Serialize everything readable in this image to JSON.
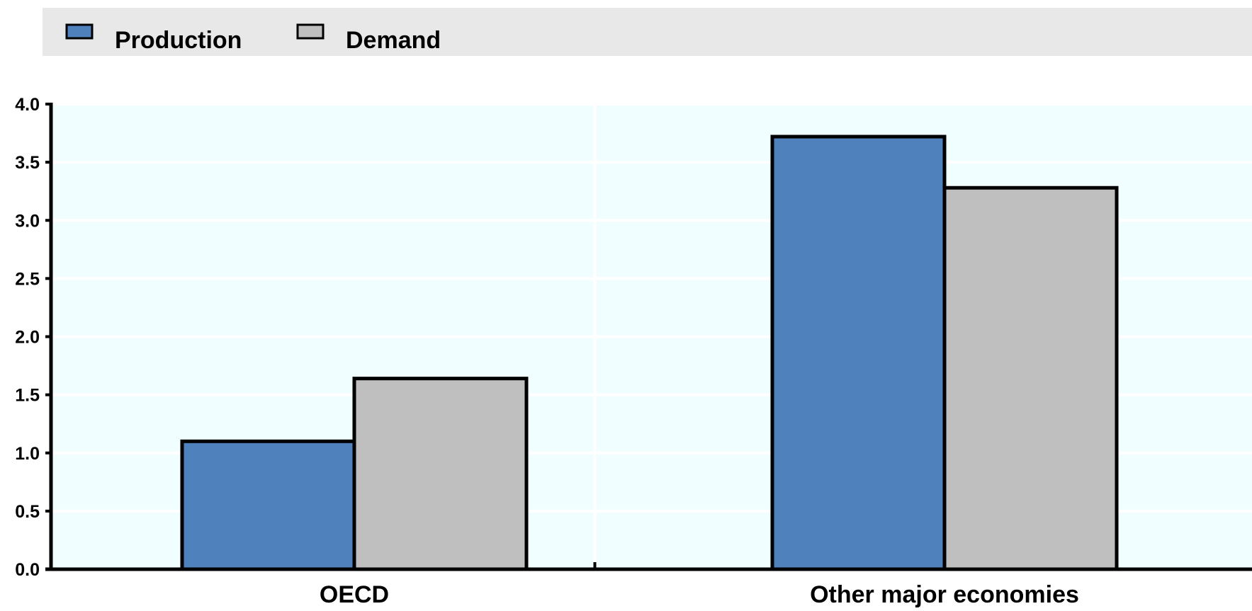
{
  "chart_data": {
    "type": "bar",
    "categories": [
      "OECD",
      "Other major economies"
    ],
    "series": [
      {
        "name": "Production",
        "values": [
          1.1,
          3.72
        ],
        "color": "#4f81bd"
      },
      {
        "name": "Demand",
        "values": [
          1.64,
          3.28
        ],
        "color": "#bfbfbf"
      }
    ],
    "ylim": [
      0,
      4.0
    ],
    "yticks": [
      "0.0",
      "0.5",
      "1.0",
      "1.5",
      "2.0",
      "2.5",
      "3.0",
      "3.5",
      "4.0"
    ],
    "title": "",
    "xlabel": "",
    "ylabel": "",
    "grid": true,
    "legend_position": "top-left",
    "colors": {
      "plot_background": "#f0feff",
      "legend_background": "#e8e8e8",
      "gridline": "#ffffff",
      "axis": "#000000"
    }
  }
}
